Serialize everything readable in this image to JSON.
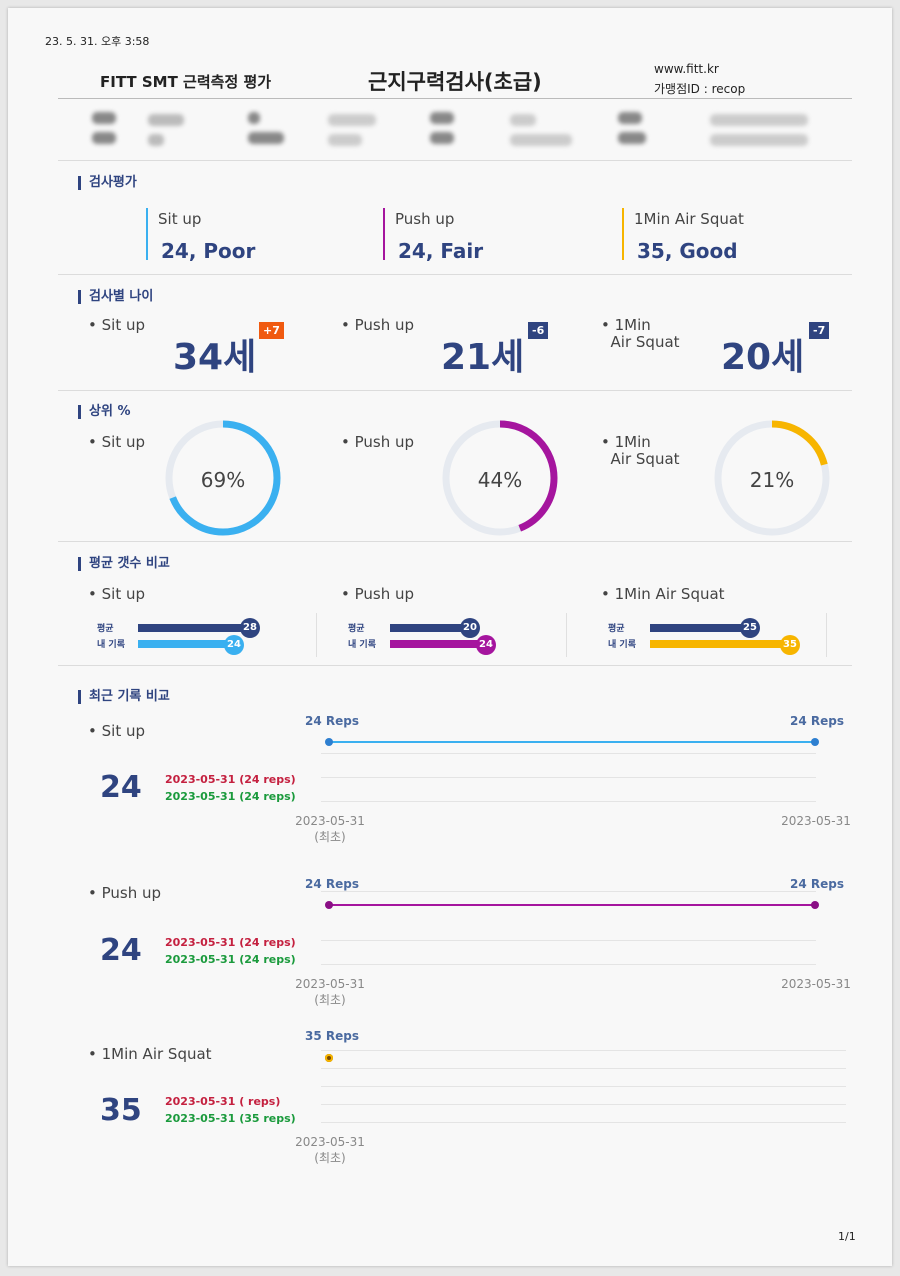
{
  "header": {
    "timestamp": "23. 5. 31. 오후 3:58",
    "left_title": "FITT SMT 근력측정 평가",
    "main_title": "근지구력검사(초급)",
    "site": "www.fitt.kr",
    "store_id": "가맹점ID : recop"
  },
  "evaluation": {
    "title": "검사평가",
    "items": [
      {
        "name": "Sit up",
        "value": "24, Poor",
        "color": "#3ab0f0"
      },
      {
        "name": "Push up",
        "value": "24, Fair",
        "color": "#a5159e"
      },
      {
        "name": "1Min Air Squat",
        "value": "35, Good",
        "color": "#f7b500"
      }
    ]
  },
  "age": {
    "title": "검사별 나이",
    "items": [
      {
        "name": "Sit up",
        "age": "34세",
        "diff": "+7",
        "diff_color": "#f05a10"
      },
      {
        "name": "Push up",
        "age": "21세",
        "diff": "-6",
        "diff_color": "#2f4480"
      },
      {
        "name_line1": "1Min",
        "name_line2": "Air Squat",
        "age": "20세",
        "diff": "-7",
        "diff_color": "#2f4480"
      }
    ]
  },
  "rank": {
    "title": "상위 %",
    "items": [
      {
        "name": "Sit up",
        "percent": 69,
        "label": "69%",
        "color": "#3ab0f0"
      },
      {
        "name": "Push up",
        "percent": 44,
        "label": "44%",
        "color": "#a5159e"
      },
      {
        "name_line1": "1Min",
        "name_line2": "Air Squat",
        "percent": 21,
        "label": "21%",
        "color": "#f7b500"
      }
    ]
  },
  "compare": {
    "title": "평균 갯수 비교",
    "avg_label": "평균",
    "mine_label": "내 기록",
    "avg_color": "#2f4480",
    "items": [
      {
        "name": "Sit up",
        "avg": 28,
        "mine": 24,
        "color": "#3ab0f0"
      },
      {
        "name": "Push up",
        "avg": 20,
        "mine": 24,
        "color": "#a5159e"
      },
      {
        "name": "1Min Air Squat",
        "avg": 25,
        "mine": 35,
        "color": "#f7b500"
      }
    ]
  },
  "recent": {
    "title": "최근 기록 비교",
    "items": [
      {
        "name": "Sit up",
        "value": "24",
        "rec1": "2023-05-31 (24 reps)",
        "rec2": "2023-05-31 (24 reps)",
        "reps_left": "24 Reps",
        "reps_right": "24 Reps",
        "date_left": "2023-05-31",
        "date_left_sub": "(최초)",
        "date_right": "2023-05-31",
        "color": "#3ab0f0"
      },
      {
        "name": "Push up",
        "value": "24",
        "rec1": "2023-05-31 (24 reps)",
        "rec2": "2023-05-31 (24 reps)",
        "reps_left": "24 Reps",
        "reps_right": "24 Reps",
        "date_left": "2023-05-31",
        "date_left_sub": "(최초)",
        "date_right": "2023-05-31",
        "color": "#a5159e"
      },
      {
        "name": "1Min Air Squat",
        "value": "35",
        "rec1": "2023-05-31 ( reps)",
        "rec2": "2023-05-31 (35 reps)",
        "reps_left": "35 Reps",
        "date_left": "2023-05-31",
        "date_left_sub": "(최초)",
        "color": "#f7b500"
      }
    ]
  },
  "footer": {
    "page": "1/1"
  }
}
